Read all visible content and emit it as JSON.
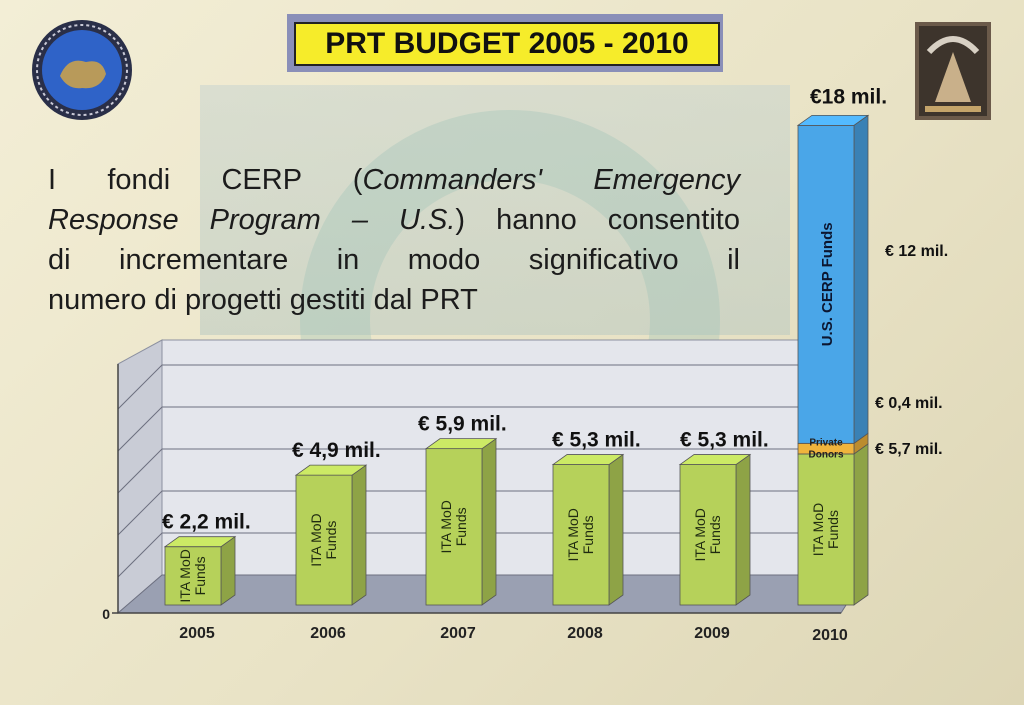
{
  "slide": {
    "title": "PRT BUDGET 2005 - 2010",
    "intro_lines": [
      {
        "parts": [
          {
            "t": "I fondi CERP (",
            "i": false
          },
          {
            "t": "Commanders' Emergency",
            "i": true
          }
        ]
      },
      {
        "parts": [
          {
            "t": "Response Program – U.S.",
            "i": true
          },
          {
            "t": ") hanno consentito",
            "i": false
          }
        ]
      },
      {
        "parts": [
          {
            "t": "di incrementare in modo significativo il",
            "i": false
          }
        ]
      },
      {
        "parts": [
          {
            "t": "numero di progetti gestiti dal PRT",
            "i": false
          }
        ]
      }
    ],
    "logos": {
      "left": "emblem-logo",
      "right": "unit-logo"
    }
  },
  "chart_data": {
    "type": "bar",
    "subtype": "stacked-3d",
    "categories": [
      "2005",
      "2006",
      "2007",
      "2008",
      "2009",
      "2010"
    ],
    "series": [
      {
        "name": "ITA MoD Funds",
        "values": [
          2.2,
          4.9,
          5.9,
          5.3,
          5.3,
          5.7
        ],
        "color": "#b6d15a"
      },
      {
        "name": "Private Donors",
        "values": [
          0,
          0,
          0,
          0,
          0,
          0.4
        ],
        "color": "#f0b43c"
      },
      {
        "name": "U.S. CERP Funds",
        "values": [
          0,
          0,
          0,
          0,
          0,
          12
        ],
        "color": "#4aa6e8"
      }
    ],
    "bar_labels": [
      "€ 2,2 mil.",
      "€ 4,9 mil.",
      "€ 5,9 mil.",
      "€ 5,3 mil.",
      "€ 5,3 mil.",
      "€18 mil."
    ],
    "segment_labels_2010": {
      "cerp": "€ 12 mil.",
      "private": "€ 0,4 mil.",
      "ita": "€ 5,7 mil."
    },
    "ylim": [
      0,
      18
    ],
    "y_tick_labels": [
      "0"
    ],
    "grid": true,
    "colors": {
      "floor": "#9aa0b2",
      "wall": "#e4e6ec",
      "side_wall": "#c9ccd6"
    }
  }
}
